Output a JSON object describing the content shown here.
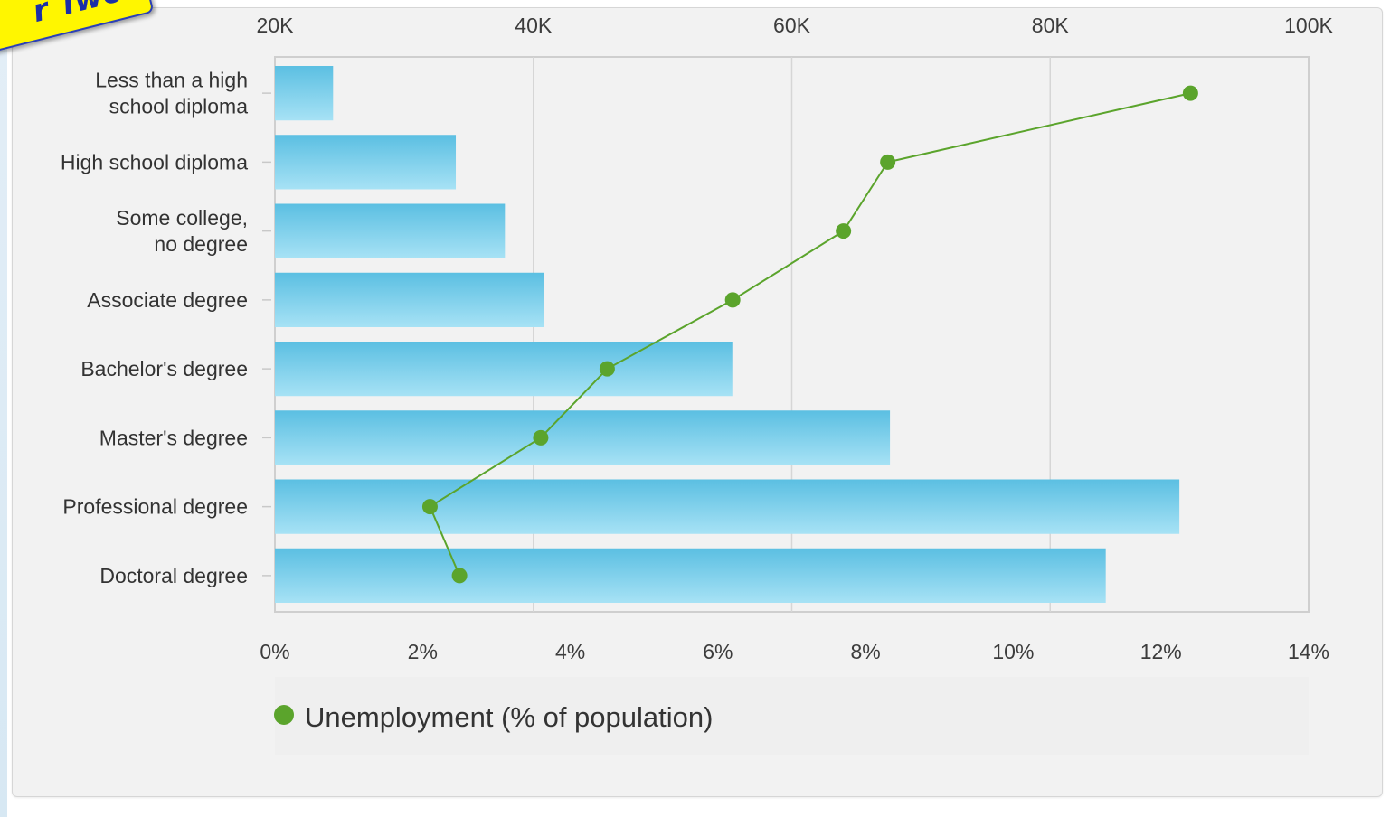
{
  "banner": {
    "text": "r Two"
  },
  "chart_data": {
    "type": "bar",
    "categories": [
      [
        "Less than a high",
        "school diploma"
      ],
      [
        "High school diploma"
      ],
      [
        "Some college,",
        "no degree"
      ],
      [
        "Associate degree"
      ],
      [
        "Bachelor's degree"
      ],
      [
        "Master's degree"
      ],
      [
        "Professional degree"
      ],
      [
        "Doctoral degree"
      ]
    ],
    "bar_series": {
      "values": [
        24500,
        34000,
        37800,
        40800,
        55400,
        67600,
        90000,
        84300
      ],
      "axis": {
        "ticks": [
          20000,
          40000,
          60000,
          80000,
          100000
        ],
        "tick_labels": [
          "20K",
          "40K",
          "60K",
          "80K",
          "100K"
        ],
        "range": [
          20000,
          100000
        ],
        "position": "top"
      },
      "color_top": "#5bbfe2",
      "color_bottom": "#a7e2f5"
    },
    "line_series": {
      "name": "Unemployment (% of population)",
      "values": [
        12.4,
        8.3,
        7.7,
        6.2,
        4.5,
        3.6,
        2.1,
        2.5
      ],
      "axis": {
        "ticks": [
          0,
          2,
          4,
          6,
          8,
          10,
          12,
          14
        ],
        "tick_labels": [
          "0%",
          "2%",
          "4%",
          "6%",
          "8%",
          "10%",
          "12%",
          "14%"
        ],
        "range": [
          0,
          14
        ],
        "position": "bottom"
      },
      "color": "#5ba42c"
    },
    "grid": true,
    "legend_position": "bottom-left"
  }
}
